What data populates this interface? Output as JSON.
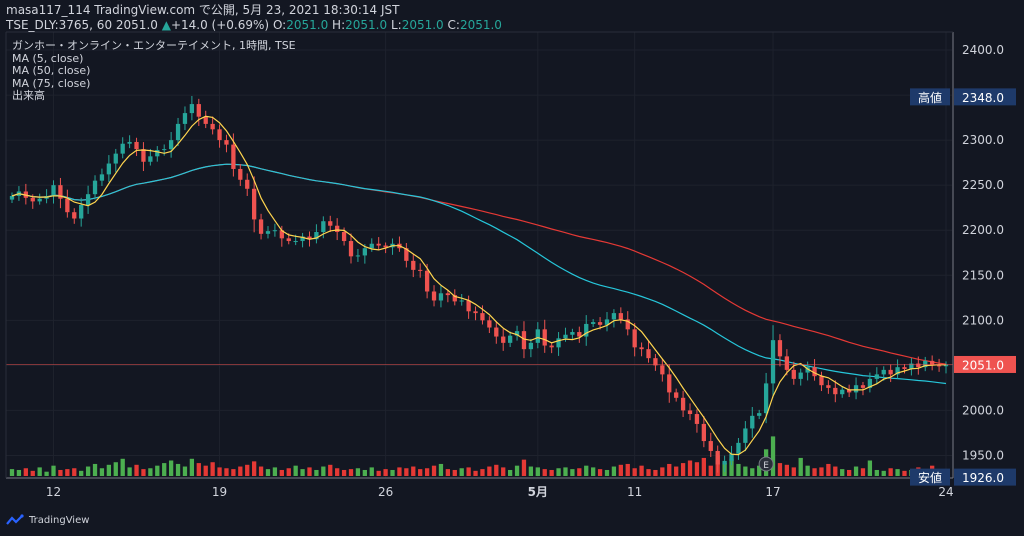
{
  "header": {
    "line1_prefix": "masa117_114 TradingView.com で公開, 5月 23, 2021 18:30:14 JST",
    "symbol": "TSE_DLY:3765, 60",
    "last": "2051.0",
    "arrow": "▲",
    "change": "+14.0 (+0.69%)",
    "o_label": "O:",
    "o": "2051.0",
    "h_label": "H:",
    "h": "2051.0",
    "l_label": "L:",
    "l": "2051.0",
    "c_label": "C:",
    "c": "2051.0"
  },
  "legend": {
    "title": "ガンホー・オンライン・エンターテイメント, 1時間, TSE",
    "ma5": "MA (5, close)",
    "ma50": "MA (50, close)",
    "ma75": "MA (75, close)",
    "volume": "出来高"
  },
  "footer": {
    "brand": "TradingView"
  },
  "colors": {
    "background": "#131722",
    "up": "#26a69a",
    "down": "#ef5350",
    "vol_up": "#4caf50",
    "vol_down": "#e53935",
    "ma5": "#ffd54f",
    "ma50": "#26c6da",
    "ma75": "#e53935",
    "label_bg": "#1e3a6a",
    "price_tag": "#ef5350"
  },
  "chart_data": {
    "type": "candlestick",
    "ylim": [
      1925,
      2420
    ],
    "y_ticks": [
      "2400.0",
      "2350.0",
      "2300.0",
      "2250.0",
      "2200.0",
      "2150.0",
      "2100.0",
      "2050.0",
      "2000.0",
      "1950.0"
    ],
    "x_ticks": [
      {
        "label": "12",
        "index": 6
      },
      {
        "label": "19",
        "index": 30
      },
      {
        "label": "26",
        "index": 54
      },
      {
        "label": "5月",
        "index": 76
      },
      {
        "label": "11",
        "index": 90
      },
      {
        "label": "17",
        "index": 110
      },
      {
        "label": "24",
        "index": 135
      }
    ],
    "high_label": {
      "text": "高値",
      "value": "2348.0"
    },
    "low_label": {
      "text": "安値",
      "value": "1926.0"
    },
    "last_label": {
      "value": "2051.0"
    },
    "earnings_marker": {
      "text": "E",
      "index": 109
    },
    "close": [
      2238,
      2243,
      2236,
      2232,
      2235,
      2238,
      2250,
      2235,
      2220,
      2213,
      2228,
      2240,
      2255,
      2262,
      2274,
      2285,
      2296,
      2298,
      2290,
      2276,
      2282,
      2289,
      2290,
      2300,
      2318,
      2330,
      2340,
      2326,
      2318,
      2312,
      2300,
      2295,
      2268,
      2256,
      2246,
      2212,
      2196,
      2199,
      2200,
      2191,
      2188,
      2188,
      2193,
      2190,
      2198,
      2210,
      2205,
      2198,
      2188,
      2171,
      2172,
      2180,
      2185,
      2183,
      2181,
      2185,
      2180,
      2166,
      2156,
      2155,
      2132,
      2122,
      2130,
      2128,
      2121,
      2122,
      2110,
      2108,
      2100,
      2092,
      2082,
      2075,
      2083,
      2088,
      2068,
      2075,
      2090,
      2072,
      2070,
      2080,
      2084,
      2087,
      2082,
      2096,
      2098,
      2095,
      2101,
      2108,
      2101,
      2090,
      2070,
      2068,
      2058,
      2050,
      2040,
      2020,
      2014,
      2000,
      1996,
      1985,
      1966,
      1955,
      1940,
      1944,
      1952,
      1964,
      1980,
      1994,
      1997,
      2030,
      2078,
      2060,
      2045,
      2035,
      2042,
      2048,
      2038,
      2028,
      2025,
      2018,
      2023,
      2020,
      2028,
      2025,
      2035,
      2040,
      2045,
      2040,
      2048,
      2046,
      2052,
      2048,
      2055,
      2050,
      2049,
      2051
    ],
    "volume": [
      16,
      14,
      18,
      12,
      20,
      10,
      24,
      14,
      16,
      18,
      12,
      22,
      28,
      18,
      26,
      32,
      40,
      20,
      26,
      16,
      18,
      24,
      30,
      36,
      28,
      22,
      40,
      30,
      24,
      32,
      20,
      18,
      16,
      22,
      26,
      34,
      22,
      16,
      20,
      14,
      18,
      24,
      16,
      20,
      14,
      22,
      26,
      18,
      14,
      16,
      18,
      14,
      20,
      12,
      16,
      14,
      20,
      18,
      22,
      16,
      18,
      24,
      28,
      16,
      14,
      18,
      20,
      12,
      16,
      22,
      26,
      20,
      14,
      24,
      38,
      22,
      20,
      16,
      14,
      18,
      20,
      16,
      18,
      24,
      20,
      16,
      14,
      22,
      26,
      28,
      18,
      24,
      16,
      14,
      20,
      28,
      22,
      30,
      36,
      32,
      42,
      24,
      48,
      30,
      40,
      28,
      22,
      18,
      24,
      62,
      92,
      30,
      26,
      20,
      42,
      24,
      18,
      20,
      28,
      22,
      16,
      14,
      22,
      18,
      36,
      14,
      12,
      18,
      16,
      12,
      14,
      20,
      10,
      24,
      14,
      8
    ]
  }
}
